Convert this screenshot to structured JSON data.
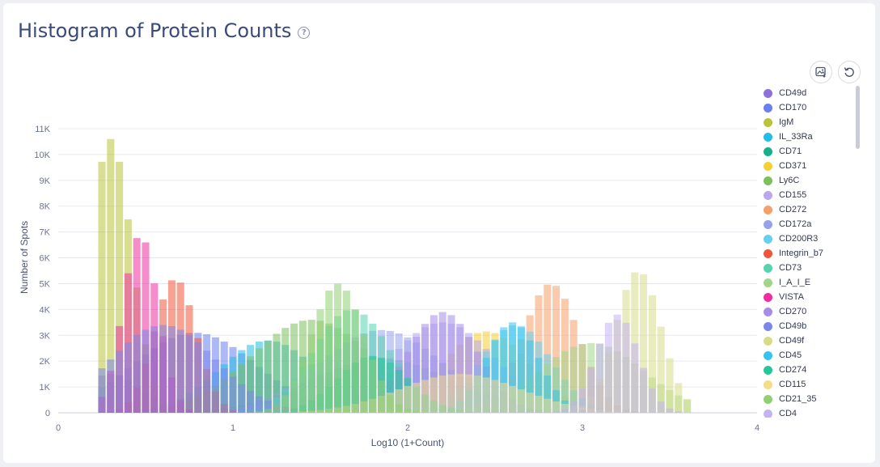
{
  "header": {
    "title": "Histogram of Protein Counts",
    "help_icon": "question-circle-icon"
  },
  "toolbar": {
    "download_icon": "image-download-icon",
    "reset_icon": "reset-rotate-icon"
  },
  "chart_data": {
    "type": "bar",
    "mode": "overlay",
    "title": "",
    "xlabel": "Log10 (1+Count)",
    "ylabel": "Number of Spots",
    "xlim": [
      0,
      4
    ],
    "ylim": [
      0,
      11000
    ],
    "x_ticks": [
      "0",
      "1",
      "2",
      "3",
      "4"
    ],
    "y_ticks": [
      "0",
      "1K",
      "2K",
      "3K",
      "4K",
      "5K",
      "6K",
      "7K",
      "8K",
      "9K",
      "10K",
      "11K"
    ],
    "grid": true,
    "legend_position": "right",
    "series": [
      {
        "name": "CD49d",
        "color": "#8c6fe0",
        "peak_x": 0.3,
        "peak_y": 1500,
        "spread": 0.18
      },
      {
        "name": "CD170",
        "color": "#6a7ff0",
        "peak_x": 0.78,
        "peak_y": 3100,
        "spread": 0.35
      },
      {
        "name": "IgM",
        "color": "#b8c43a",
        "peak_x": 0.3,
        "peak_y": 10600,
        "spread": 0.12
      },
      {
        "name": "IL_33Ra",
        "color": "#22bde8",
        "peak_x": 1.2,
        "peak_y": 2800,
        "spread": 0.28
      },
      {
        "name": "CD71",
        "color": "#15b08a",
        "peak_x": 1.85,
        "peak_y": 2100,
        "spread": 0.4
      },
      {
        "name": "CD371",
        "color": "#f4cf35",
        "peak_x": 2.45,
        "peak_y": 3150,
        "spread": 0.25
      },
      {
        "name": "Ly6C",
        "color": "#7cc05c",
        "peak_x": 1.45,
        "peak_y": 3600,
        "spread": 0.35
      },
      {
        "name": "CD155",
        "color": "#b8a8ee",
        "peak_x": 2.2,
        "peak_y": 3500,
        "spread": 0.3
      },
      {
        "name": "CD272",
        "color": "#f59f6a",
        "peak_x": 2.82,
        "peak_y": 5000,
        "spread": 0.16
      },
      {
        "name": "CD172a",
        "color": "#96a3ec",
        "peak_x": 1.85,
        "peak_y": 3200,
        "spread": 0.35
      },
      {
        "name": "CD200R3",
        "color": "#66d0ee",
        "peak_x": 2.62,
        "peak_y": 3400,
        "spread": 0.2
      },
      {
        "name": "Integrin_b7",
        "color": "#f0563a",
        "peak_x": 0.67,
        "peak_y": 5200,
        "spread": 0.12
      },
      {
        "name": "CD73",
        "color": "#55d4b0",
        "peak_x": 1.68,
        "peak_y": 4000,
        "spread": 0.22
      },
      {
        "name": "I_A_I_E",
        "color": "#a2d588",
        "peak_x": 3.05,
        "peak_y": 2700,
        "spread": 0.3
      },
      {
        "name": "VISTA",
        "color": "#f02da0",
        "peak_x": 0.47,
        "peak_y": 6900,
        "spread": 0.1
      },
      {
        "name": "CD270",
        "color": "#a68ee8",
        "peak_x": 2.2,
        "peak_y": 3900,
        "spread": 0.2
      },
      {
        "name": "CD49b",
        "color": "#7a86ec",
        "peak_x": 0.6,
        "peak_y": 3400,
        "spread": 0.3
      },
      {
        "name": "CD49f",
        "color": "#d6dc88",
        "peak_x": 3.32,
        "peak_y": 5500,
        "spread": 0.13
      },
      {
        "name": "CD45",
        "color": "#36c4ee",
        "peak_x": 2.6,
        "peak_y": 3500,
        "spread": 0.15
      },
      {
        "name": "CD274",
        "color": "#25c79a",
        "peak_x": 1.8,
        "peak_y": 2200,
        "spread": 0.2
      },
      {
        "name": "CD115",
        "color": "#f6dc8a",
        "peak_x": 2.3,
        "peak_y": 1500,
        "spread": 0.35
      },
      {
        "name": "CD21_35",
        "color": "#92cf72",
        "peak_x": 1.6,
        "peak_y": 5000,
        "spread": 0.15
      },
      {
        "name": "CD4",
        "color": "#c5b2f2",
        "peak_x": 3.2,
        "peak_y": 3800,
        "spread": 0.12
      }
    ]
  }
}
